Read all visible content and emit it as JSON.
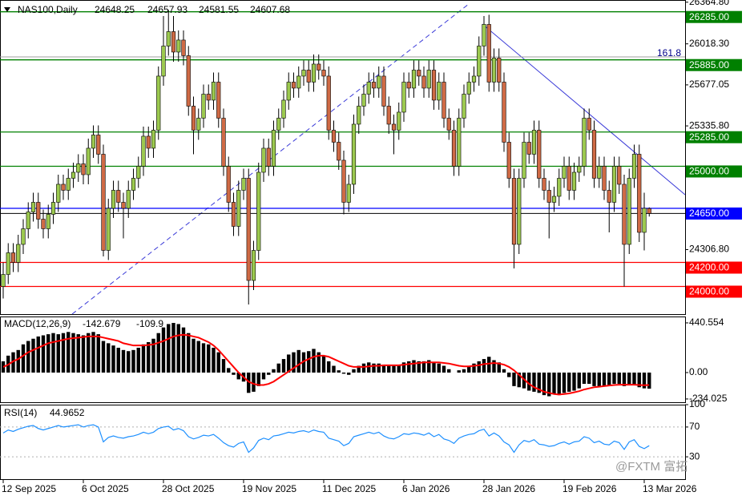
{
  "chart_data": {
    "type": "candlestick",
    "symbol": "NAS100,Daily",
    "categories": [
      "12 Sep 2025",
      null,
      null,
      null,
      null,
      null,
      null,
      null,
      null,
      null,
      null,
      null,
      null,
      null,
      null,
      null,
      "6 Oct 2025",
      null,
      null,
      null,
      null,
      null,
      null,
      null,
      null,
      null,
      null,
      null,
      null,
      null,
      null,
      null,
      "28 Oct 2025",
      null,
      null,
      null,
      null,
      null,
      null,
      null,
      null,
      null,
      null,
      null,
      null,
      null,
      null,
      null,
      "19 Nov 2025",
      null,
      null,
      null,
      null,
      null,
      null,
      null,
      null,
      null,
      null,
      null,
      null,
      null,
      null,
      null,
      "11 Dec 2025",
      null,
      null,
      null,
      null,
      null,
      null,
      null,
      null,
      null,
      null,
      null,
      null,
      null,
      null,
      null,
      "6 Jan 2026",
      null,
      null,
      null,
      null,
      null,
      null,
      null,
      null,
      null,
      null,
      null,
      null,
      null,
      null,
      null,
      "28 Jan 2026",
      null,
      null,
      null,
      null,
      null,
      null,
      null,
      null,
      null,
      null,
      null,
      null,
      null,
      null,
      null,
      "19 Feb 2026",
      null,
      null,
      null,
      null,
      null,
      null,
      null,
      null,
      null,
      null,
      null,
      null,
      null,
      null,
      null,
      "13 Mar 2026",
      null
    ],
    "open": [
      24000,
      24100,
      24280,
      24200,
      24350,
      24480,
      24620,
      24700,
      24560,
      24480,
      24600,
      24700,
      24850,
      24800,
      24900,
      24950,
      25020,
      24930,
      25150,
      25260,
      25100,
      24300,
      24650,
      24800,
      24700,
      24650,
      24800,
      24900,
      25000,
      25250,
      25150,
      25300,
      25750,
      26000,
      26120,
      25950,
      26050,
      25920,
      25500,
      25300,
      25400,
      25600,
      25550,
      25700,
      25400,
      25000,
      24700,
      24500,
      24800,
      24900,
      24050,
      24300,
      24950,
      25150,
      25000,
      25300,
      25400,
      25550,
      25700,
      25650,
      25750,
      25800,
      25700,
      25850,
      25800,
      25750,
      25300,
      25200,
      25050,
      24700,
      24850,
      25350,
      25500,
      25600,
      25700,
      25650,
      25750,
      25500,
      25350,
      25300,
      25450,
      25700,
      25650,
      25800,
      25750,
      25650,
      25800,
      25550,
      25700,
      25400,
      25300,
      25000,
      25400,
      25600,
      25700,
      25750,
      26000,
      26180,
      25700,
      25900,
      25700,
      25200,
      24900,
      24350,
      24900,
      25200,
      25100,
      25300,
      24900,
      24800,
      24700,
      24750,
      24900,
      25000,
      24800,
      24950,
      25000,
      25400,
      25300,
      24900,
      25000,
      24800,
      24700,
      25000,
      24850,
      24350,
      24900,
      25100,
      24450,
      24648.25
    ],
    "high": [
      24200,
      24360,
      24360,
      24430,
      24560,
      24700,
      24780,
      24780,
      24640,
      24680,
      24780,
      24930,
      24930,
      24980,
      25030,
      25100,
      25100,
      25230,
      25340,
      25340,
      25180,
      24730,
      24880,
      24880,
      24780,
      24880,
      24980,
      25080,
      25330,
      25330,
      25380,
      25830,
      26250,
      26300,
      26250,
      26130,
      26130,
      26000,
      25580,
      25480,
      25680,
      25680,
      25780,
      25780,
      25480,
      25080,
      24780,
      24880,
      24980,
      24980,
      24380,
      25030,
      25230,
      25230,
      25380,
      25480,
      25630,
      25780,
      25780,
      25830,
      25880,
      25880,
      25930,
      25930,
      25880,
      25830,
      25380,
      25280,
      25130,
      24930,
      25430,
      25580,
      25680,
      25780,
      25780,
      25830,
      25830,
      25580,
      25430,
      25530,
      25780,
      25780,
      25880,
      25880,
      25830,
      25880,
      25880,
      25780,
      25780,
      25480,
      25380,
      25480,
      25680,
      25780,
      25830,
      26080,
      26250,
      26260,
      25980,
      25980,
      25780,
      25280,
      24980,
      24980,
      25280,
      25280,
      25380,
      25380,
      24980,
      24880,
      24830,
      24980,
      25080,
      25080,
      25030,
      25080,
      25480,
      25480,
      25380,
      25080,
      25080,
      24880,
      25080,
      25080,
      24930,
      24980,
      25180,
      25180,
      24780,
      24657.93
    ],
    "low": [
      23900,
      24020,
      24120,
      24120,
      24270,
      24400,
      24540,
      24480,
      24400,
      24400,
      24520,
      24620,
      24720,
      24720,
      24820,
      24870,
      24850,
      24850,
      25070,
      25020,
      24250,
      24220,
      24570,
      24620,
      24400,
      24570,
      24720,
      24820,
      24920,
      25070,
      25070,
      25220,
      25670,
      25920,
      25870,
      25870,
      25840,
      25420,
      25100,
      25220,
      25320,
      25470,
      25470,
      25320,
      24920,
      24620,
      24420,
      24420,
      24720,
      23850,
      23970,
      24220,
      24870,
      24920,
      24920,
      25220,
      25320,
      25470,
      25570,
      25570,
      25670,
      25620,
      25620,
      25720,
      25670,
      25220,
      25120,
      24970,
      24600,
      24620,
      24770,
      25270,
      25420,
      25520,
      25570,
      25570,
      25420,
      25270,
      25100,
      25220,
      25370,
      25570,
      25570,
      25670,
      25570,
      25570,
      25470,
      25470,
      25320,
      25220,
      24920,
      24920,
      25320,
      25520,
      25620,
      25670,
      25920,
      25620,
      25620,
      25620,
      25120,
      24820,
      24150,
      24270,
      24820,
      25020,
      25020,
      24820,
      24720,
      24400,
      24620,
      24670,
      24820,
      24720,
      24720,
      24870,
      24920,
      25220,
      24820,
      24820,
      24720,
      24450,
      24620,
      24770,
      24000,
      24270,
      24820,
      24370,
      24300,
      24581.55
    ],
    "close": [
      24100,
      24280,
      24200,
      24350,
      24480,
      24620,
      24700,
      24560,
      24480,
      24600,
      24700,
      24850,
      24800,
      24900,
      24950,
      25020,
      24930,
      25150,
      25260,
      25100,
      24300,
      24650,
      24800,
      24700,
      24650,
      24800,
      24900,
      25000,
      25250,
      25150,
      25300,
      25750,
      26000,
      26120,
      25950,
      26050,
      25920,
      25500,
      25300,
      25400,
      25600,
      25550,
      25700,
      25400,
      25000,
      24700,
      24500,
      24800,
      24900,
      24050,
      24300,
      24950,
      25150,
      25000,
      25300,
      25400,
      25550,
      25700,
      25650,
      25750,
      25800,
      25700,
      25850,
      25800,
      25750,
      25300,
      25200,
      25050,
      24700,
      24850,
      25350,
      25500,
      25600,
      25700,
      25650,
      25750,
      25500,
      25350,
      25300,
      25450,
      25700,
      25650,
      25800,
      25750,
      25650,
      25800,
      25550,
      25700,
      25400,
      25300,
      25000,
      25400,
      25600,
      25700,
      25750,
      26000,
      26180,
      25700,
      25900,
      25700,
      25200,
      24900,
      24350,
      24900,
      25200,
      25100,
      25300,
      24900,
      24800,
      24700,
      24750,
      24900,
      25000,
      24800,
      24950,
      25000,
      25400,
      25300,
      24900,
      25000,
      24800,
      24700,
      25000,
      24850,
      24350,
      24900,
      25100,
      24450,
      24650,
      24607.68
    ],
    "up_color": "#9cc94f",
    "down_color": "#cf6a45",
    "ylim": [
      23770,
      26383
    ],
    "yticks": [
      {
        "value": 24306.8,
        "label": "24306.80"
      },
      {
        "value": 25335.8,
        "label": "25335.80"
      },
      {
        "value": 25677.05,
        "label": "25677.05"
      },
      {
        "value": 26018.3,
        "label": "26018.30"
      },
      {
        "value": 26364.8,
        "label": "26364.80"
      }
    ],
    "levels": [
      {
        "value": 26285,
        "label": "26285.00",
        "color": "#008000"
      },
      {
        "value": 25885,
        "label": "25885.00",
        "color": "#008000"
      },
      {
        "value": 25285,
        "label": "25285.00",
        "color": "#008000"
      },
      {
        "value": 25000,
        "label": "25000.00",
        "color": "#008000"
      },
      {
        "value": 24650,
        "label": "24650.00",
        "color": "#0000ff"
      },
      {
        "value": 24200,
        "label": "24200.00",
        "color": "#ff0000"
      },
      {
        "value": 24000,
        "label": "24000.00",
        "color": "#ff0000"
      }
    ],
    "fib_line": 25910,
    "fib_annotation": "161.8",
    "macd": {
      "title": "MACD(12,26,9)",
      "histogram": [
        100,
        150,
        180,
        200,
        250,
        280,
        300,
        320,
        330,
        340,
        350,
        340,
        350,
        360,
        350,
        340,
        330,
        350,
        360,
        340,
        280,
        260,
        240,
        220,
        200,
        190,
        200,
        220,
        250,
        270,
        300,
        350,
        400,
        430,
        440,
        430,
        400,
        350,
        300,
        280,
        260,
        250,
        220,
        180,
        120,
        40,
        -20,
        -60,
        -80,
        -180,
        -170,
        -120,
        -60,
        -20,
        30,
        80,
        120,
        160,
        180,
        200,
        180,
        190,
        210,
        180,
        150,
        100,
        60,
        20,
        -10,
        -20,
        30,
        60,
        80,
        90,
        80,
        80,
        70,
        60,
        60,
        70,
        90,
        100,
        110,
        100,
        100,
        110,
        90,
        80,
        60,
        30,
        0,
        20,
        30,
        60,
        80,
        100,
        120,
        140,
        110,
        90,
        30,
        -40,
        -120,
        -130,
        -140,
        -160,
        -170,
        -180,
        -200,
        -210,
        -190,
        -200,
        -180,
        -170,
        -160,
        -140,
        -100,
        -100,
        -120,
        -130,
        -120,
        -110,
        -100,
        -100,
        -120,
        -110,
        -110,
        -130,
        -140,
        -142.679
      ],
      "signal": [
        50,
        70,
        100,
        120,
        150,
        180,
        200,
        220,
        240,
        260,
        270,
        280,
        290,
        300,
        305,
        310,
        315,
        320,
        320,
        320,
        310,
        300,
        290,
        280,
        260,
        250,
        240,
        240,
        240,
        245,
        250,
        265,
        280,
        300,
        320,
        330,
        335,
        330,
        320,
        310,
        290,
        270,
        240,
        200,
        150,
        100,
        50,
        0,
        -40,
        -80,
        -100,
        -110,
        -110,
        -100,
        -80,
        -50,
        -20,
        10,
        40,
        70,
        100,
        120,
        140,
        150,
        150,
        140,
        120,
        100,
        80,
        60,
        50,
        50,
        50,
        55,
        60,
        60,
        65,
        65,
        65,
        65,
        70,
        75,
        80,
        85,
        90,
        90,
        90,
        90,
        85,
        80,
        70,
        60,
        55,
        55,
        60,
        65,
        75,
        80,
        85,
        80,
        70,
        50,
        20,
        -20,
        -60,
        -100,
        -130,
        -150,
        -170,
        -180,
        -190,
        -195,
        -190,
        -185,
        -175,
        -165,
        -150,
        -140,
        -130,
        -125,
        -120,
        -115,
        -110,
        -108,
        -108,
        -108,
        -108,
        -110,
        -112,
        -109.9
      ],
      "ylim": [
        -263,
        497
      ],
      "yticks": [
        -234.025,
        {
          "value": 0,
          "label": "0.00"
        },
        440.554
      ],
      "hist_color": "#000000",
      "signal_color": "#ff0000"
    },
    "rsi": {
      "title": "RSI(14)",
      "values": [
        62,
        66,
        64,
        67,
        69,
        71,
        72,
        68,
        66,
        68,
        70,
        72,
        70,
        71,
        72,
        73,
        70,
        72,
        73,
        70,
        50,
        56,
        58,
        56,
        55,
        57,
        58,
        60,
        63,
        61,
        63,
        68,
        70,
        71,
        66,
        68,
        65,
        57,
        54,
        56,
        59,
        58,
        60,
        55,
        49,
        45,
        43,
        48,
        50,
        36,
        42,
        52,
        55,
        53,
        58,
        59,
        61,
        63,
        62,
        64,
        65,
        63,
        66,
        64,
        63,
        55,
        53,
        51,
        45,
        48,
        57,
        59,
        61,
        63,
        61,
        63,
        58,
        55,
        54,
        57,
        61,
        60,
        62,
        61,
        59,
        62,
        57,
        60,
        54,
        52,
        48,
        55,
        58,
        60,
        61,
        65,
        67,
        58,
        62,
        58,
        50,
        46,
        36,
        46,
        52,
        50,
        53,
        47,
        46,
        44,
        45,
        48,
        50,
        47,
        50,
        51,
        57,
        55,
        49,
        51,
        47,
        46,
        51,
        49,
        40,
        50,
        53,
        44,
        41,
        44.9652
      ],
      "ylim": [
        0,
        100
      ],
      "yticks": [
        30,
        70,
        100
      ],
      "levels": [
        30,
        70
      ],
      "color": "#1e90ff"
    },
    "watermark": "@FXTM 富拓"
  }
}
